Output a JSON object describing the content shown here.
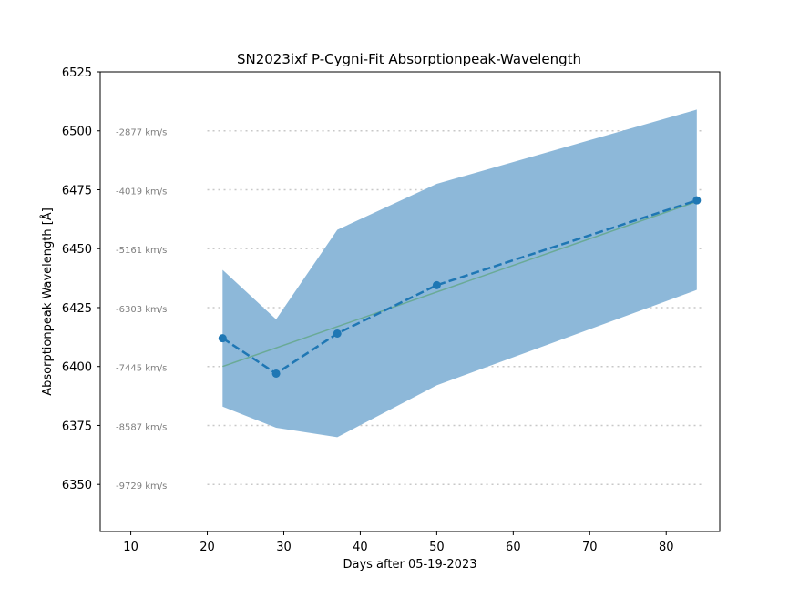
{
  "chart_data": {
    "type": "line",
    "title": "SN2023ixf P-Cygni-Fit Absorptionpeak-Wavelength",
    "xlabel": "Days after 05-19-2023",
    "ylabel": "Absorptionpeak Wavelength [Å]",
    "xlim": [
      6,
      87
    ],
    "ylim": [
      6330,
      6525
    ],
    "x_ticks": [
      10,
      20,
      30,
      40,
      50,
      60,
      70,
      80
    ],
    "y_ticks": [
      6350,
      6375,
      6400,
      6425,
      6450,
      6475,
      6500,
      6525
    ],
    "velocity_annotations": [
      {
        "wavelength": 6500,
        "label": "-2877 km/s"
      },
      {
        "wavelength": 6475,
        "label": "-4019 km/s"
      },
      {
        "wavelength": 6450,
        "label": "-5161 km/s"
      },
      {
        "wavelength": 6425,
        "label": "-6303 km/s"
      },
      {
        "wavelength": 6400,
        "label": "-7445 km/s"
      },
      {
        "wavelength": 6375,
        "label": "-8587 km/s"
      },
      {
        "wavelength": 6350,
        "label": "-9729 km/s"
      }
    ],
    "velocity_line_x_range": [
      20,
      85
    ],
    "measurements": {
      "x": [
        22,
        29,
        37,
        50,
        84
      ],
      "y": [
        6412,
        6397,
        6414,
        6434.5,
        6470.5
      ],
      "upper": [
        6441,
        6420,
        6458,
        6477.5,
        6509
      ],
      "lower": [
        6383,
        6374,
        6370,
        6392,
        6432.5
      ],
      "color": "#1f77b4",
      "band_color": "#8db8d9",
      "style": "dashed"
    },
    "fit_line": {
      "x": [
        22,
        84
      ],
      "y": [
        6400,
        6470
      ],
      "color": "#6aaa96"
    },
    "grid": false,
    "legend": "none"
  }
}
